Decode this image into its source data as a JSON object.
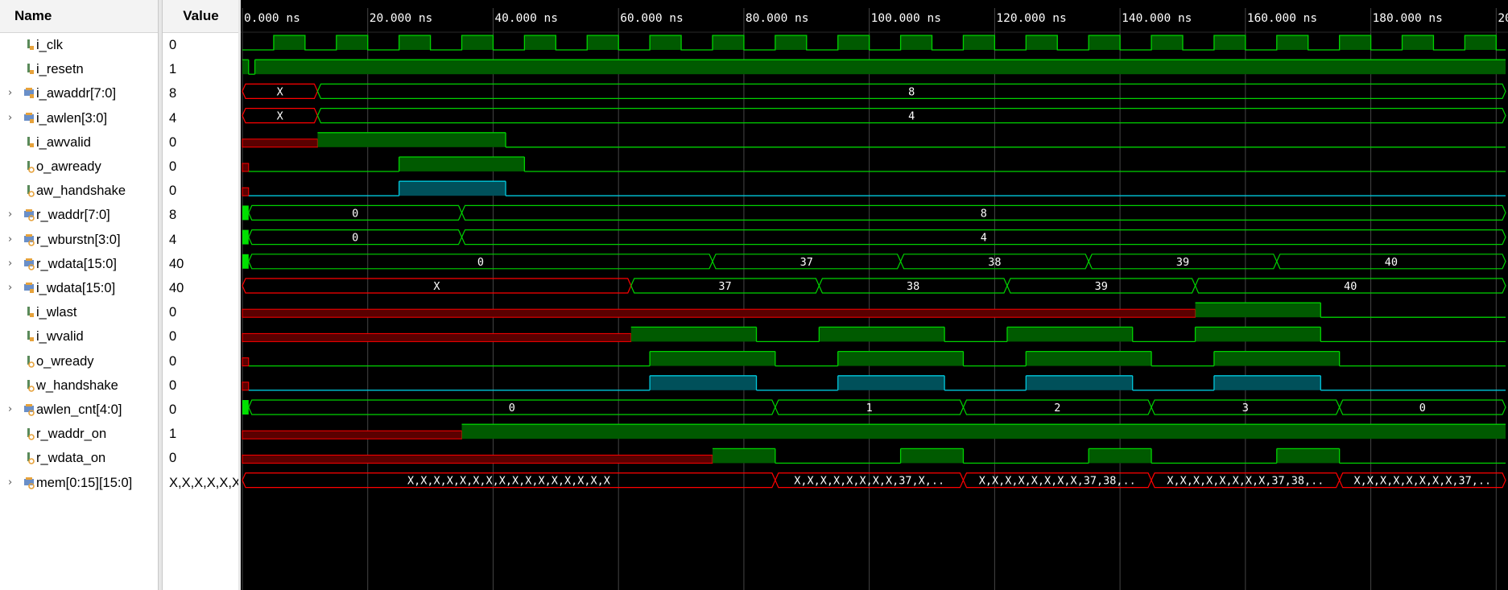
{
  "headers": {
    "name": "Name",
    "value": "Value"
  },
  "colors": {
    "background": "#000000",
    "signal": "#00d200",
    "signal_fill": "#005a00",
    "unknown": "#ff0000",
    "unknown_fill": "#5a0000",
    "handshake": "#00c8dc",
    "handshake_fill": "#00505a",
    "grid": "#444444",
    "text": "#ffffff"
  },
  "timeline": {
    "unit": "ns",
    "tick_labels": [
      "0.000 ns",
      "20.000 ns",
      "40.000 ns",
      "60.000 ns",
      "80.000 ns",
      "100.000 ns",
      "120.000 ns",
      "140.000 ns",
      "160.000 ns",
      "180.000 ns",
      "20"
    ],
    "view_start_ns": 0,
    "view_end_ns": 201.5
  },
  "signals": [
    {
      "name": "i_clk",
      "value": "0",
      "kind": "clock",
      "bus": false,
      "icon": "scalar-input-icon",
      "clock_period_ns": 10,
      "first_rise_ns": 5
    },
    {
      "name": "i_resetn",
      "value": "1",
      "kind": "bit",
      "bus": false,
      "icon": "scalar-input-icon",
      "segments": [
        [
          0,
          1,
          "1"
        ],
        [
          1,
          2,
          "0"
        ],
        [
          2,
          201.5,
          "1"
        ]
      ]
    },
    {
      "name": "i_awaddr[7:0]",
      "value": "8",
      "kind": "bus",
      "bus": true,
      "icon": "bus-input-icon",
      "segments": [
        [
          0,
          12,
          "X"
        ],
        [
          12,
          201.5,
          "8"
        ]
      ]
    },
    {
      "name": "i_awlen[3:0]",
      "value": "4",
      "kind": "bus",
      "bus": true,
      "icon": "bus-input-icon",
      "segments": [
        [
          0,
          12,
          "X"
        ],
        [
          12,
          201.5,
          "4"
        ]
      ]
    },
    {
      "name": "i_awvalid",
      "value": "0",
      "kind": "bit",
      "bus": false,
      "icon": "scalar-input-icon",
      "segments": [
        [
          0,
          12,
          "X"
        ],
        [
          12,
          42,
          "1"
        ],
        [
          42,
          201.5,
          "0"
        ]
      ]
    },
    {
      "name": "o_awready",
      "value": "0",
      "kind": "bit",
      "bus": false,
      "icon": "scalar-output-icon",
      "segments": [
        [
          0,
          1,
          "X"
        ],
        [
          1,
          25,
          "0"
        ],
        [
          25,
          45,
          "1"
        ],
        [
          45,
          201.5,
          "0"
        ]
      ]
    },
    {
      "name": "aw_handshake",
      "value": "0",
      "kind": "handshake",
      "bus": false,
      "icon": "scalar-output-icon",
      "segments": [
        [
          0,
          1,
          "X"
        ],
        [
          1,
          25,
          "0"
        ],
        [
          25,
          42,
          "1"
        ],
        [
          42,
          201.5,
          "0"
        ]
      ]
    },
    {
      "name": "r_waddr[7:0]",
      "value": "8",
      "kind": "bus",
      "bus": true,
      "icon": "bus-output-icon",
      "segments": [
        [
          0,
          1,
          "G"
        ],
        [
          1,
          35,
          "0"
        ],
        [
          35,
          201.5,
          "8"
        ]
      ]
    },
    {
      "name": "r_wburstn[3:0]",
      "value": "4",
      "kind": "bus",
      "bus": true,
      "icon": "bus-output-icon",
      "segments": [
        [
          0,
          1,
          "G"
        ],
        [
          1,
          35,
          "0"
        ],
        [
          35,
          201.5,
          "4"
        ]
      ]
    },
    {
      "name": "r_wdata[15:0]",
      "value": "40",
      "kind": "bus",
      "bus": true,
      "icon": "bus-output-icon",
      "segments": [
        [
          0,
          1,
          "G"
        ],
        [
          1,
          75,
          "0"
        ],
        [
          75,
          105,
          "37"
        ],
        [
          105,
          135,
          "38"
        ],
        [
          135,
          165,
          "39"
        ],
        [
          165,
          201.5,
          "40"
        ]
      ]
    },
    {
      "name": "i_wdata[15:0]",
      "value": "40",
      "kind": "bus",
      "bus": true,
      "icon": "bus-input-icon",
      "segments": [
        [
          0,
          62,
          "X"
        ],
        [
          62,
          92,
          "37"
        ],
        [
          92,
          122,
          "38"
        ],
        [
          122,
          152,
          "39"
        ],
        [
          152,
          201.5,
          "40"
        ]
      ]
    },
    {
      "name": "i_wlast",
      "value": "0",
      "kind": "bit",
      "bus": false,
      "icon": "scalar-input-icon",
      "segments": [
        [
          0,
          152,
          "X"
        ],
        [
          152,
          172,
          "1"
        ],
        [
          172,
          201.5,
          "0"
        ]
      ]
    },
    {
      "name": "i_wvalid",
      "value": "0",
      "kind": "bit",
      "bus": false,
      "icon": "scalar-input-icon",
      "segments": [
        [
          0,
          62,
          "X"
        ],
        [
          62,
          82,
          "1"
        ],
        [
          82,
          92,
          "0"
        ],
        [
          92,
          112,
          "1"
        ],
        [
          112,
          122,
          "0"
        ],
        [
          122,
          142,
          "1"
        ],
        [
          142,
          152,
          "0"
        ],
        [
          152,
          172,
          "1"
        ],
        [
          172,
          201.5,
          "0"
        ]
      ]
    },
    {
      "name": "o_wready",
      "value": "0",
      "kind": "bit",
      "bus": false,
      "icon": "scalar-output-icon",
      "segments": [
        [
          0,
          1,
          "X"
        ],
        [
          1,
          65,
          "0"
        ],
        [
          65,
          85,
          "1"
        ],
        [
          85,
          95,
          "0"
        ],
        [
          95,
          115,
          "1"
        ],
        [
          115,
          125,
          "0"
        ],
        [
          125,
          145,
          "1"
        ],
        [
          145,
          155,
          "0"
        ],
        [
          155,
          175,
          "1"
        ],
        [
          175,
          201.5,
          "0"
        ]
      ]
    },
    {
      "name": "w_handshake",
      "value": "0",
      "kind": "handshake",
      "bus": false,
      "icon": "scalar-output-icon",
      "segments": [
        [
          0,
          1,
          "X"
        ],
        [
          1,
          65,
          "0"
        ],
        [
          65,
          82,
          "1"
        ],
        [
          82,
          95,
          "0"
        ],
        [
          95,
          112,
          "1"
        ],
        [
          112,
          125,
          "0"
        ],
        [
          125,
          142,
          "1"
        ],
        [
          142,
          155,
          "0"
        ],
        [
          155,
          172,
          "1"
        ],
        [
          172,
          201.5,
          "0"
        ]
      ]
    },
    {
      "name": "awlen_cnt[4:0]",
      "value": "0",
      "kind": "bus",
      "bus": true,
      "icon": "bus-output-icon",
      "segments": [
        [
          0,
          1,
          "G"
        ],
        [
          1,
          85,
          "0"
        ],
        [
          85,
          115,
          "1"
        ],
        [
          115,
          145,
          "2"
        ],
        [
          145,
          175,
          "3"
        ],
        [
          175,
          201.5,
          "0"
        ]
      ]
    },
    {
      "name": "r_waddr_on",
      "value": "1",
      "kind": "bit",
      "bus": false,
      "icon": "scalar-output-icon",
      "segments": [
        [
          0,
          35,
          "X"
        ],
        [
          35,
          201.5,
          "1"
        ]
      ]
    },
    {
      "name": "r_wdata_on",
      "value": "0",
      "kind": "bit",
      "bus": false,
      "icon": "scalar-output-icon",
      "segments": [
        [
          0,
          75,
          "X"
        ],
        [
          75,
          85,
          "1"
        ],
        [
          85,
          105,
          "0"
        ],
        [
          105,
          115,
          "1"
        ],
        [
          115,
          135,
          "0"
        ],
        [
          135,
          145,
          "1"
        ],
        [
          145,
          165,
          "0"
        ],
        [
          165,
          175,
          "1"
        ],
        [
          175,
          201.5,
          "0"
        ]
      ]
    },
    {
      "name": "mem[0:15][15:0]",
      "value": "X,X,X,X,X,X,X,X",
      "kind": "bus",
      "bus": true,
      "icon": "bus-output-icon",
      "segments": [
        [
          0,
          85,
          "X,X,X,X,X,X,X,X,X,X,X,X,X,X,X,X",
          "X"
        ],
        [
          85,
          115,
          "X,X,X,X,X,X,X,X,37,X,..",
          "X"
        ],
        [
          115,
          145,
          "X,X,X,X,X,X,X,X,37,38,..",
          "X"
        ],
        [
          145,
          175,
          "X,X,X,X,X,X,X,X,37,38,..",
          "X"
        ],
        [
          175,
          201.5,
          "X,X,X,X,X,X,X,X,37,..",
          "X"
        ]
      ]
    }
  ]
}
